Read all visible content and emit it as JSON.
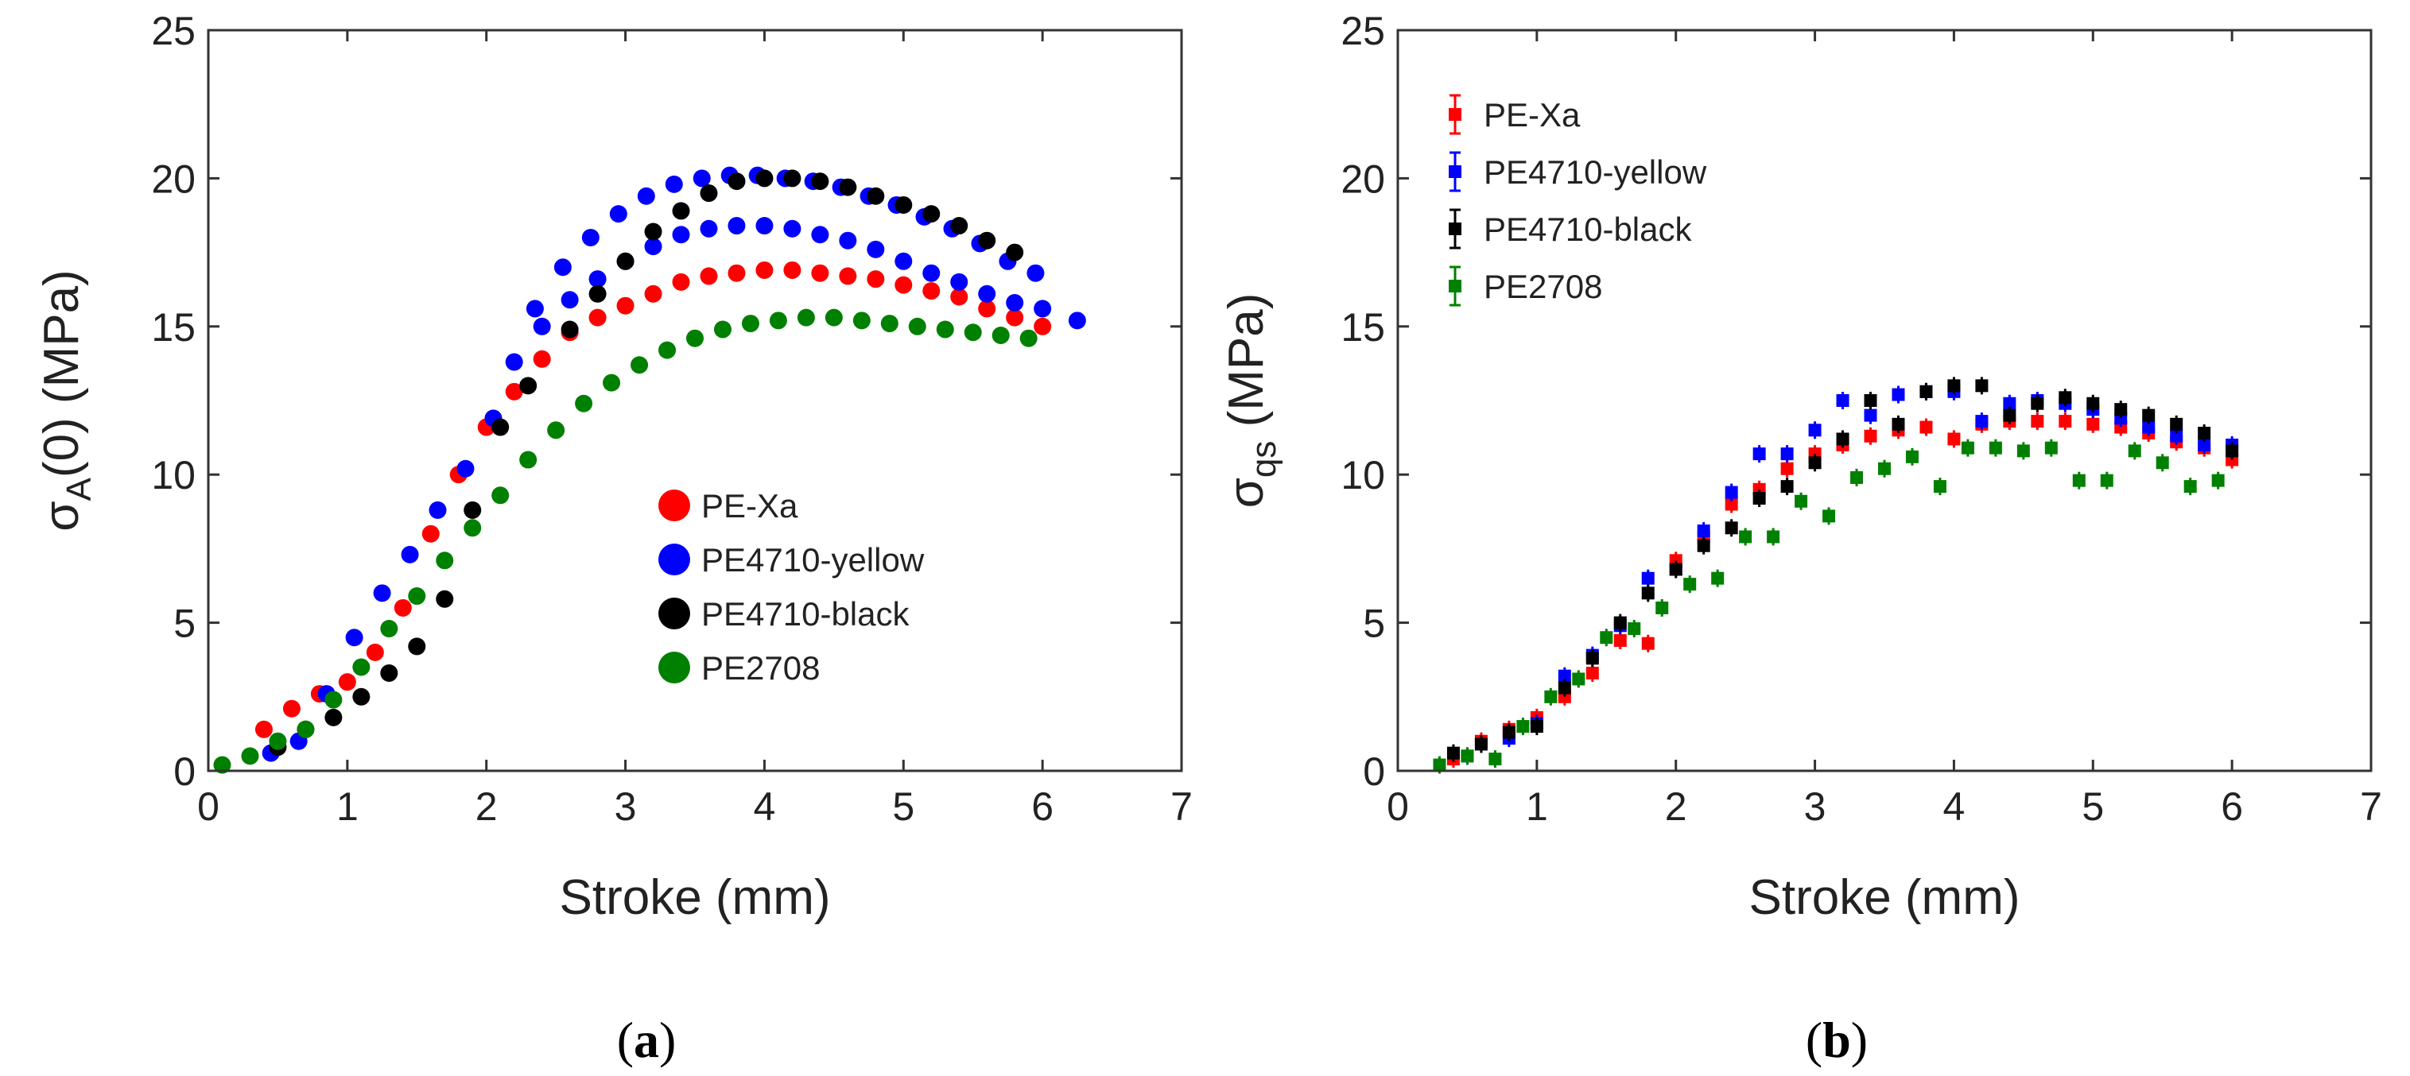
{
  "chart_data": [
    {
      "panel": "a",
      "type": "scatter",
      "title": "",
      "xlabel": "Stroke (mm)",
      "ylabel": {
        "base": "σ",
        "sub": "A",
        "rest": "(0) (MPa)"
      },
      "xlim": [
        0,
        7
      ],
      "ylim": [
        0,
        25
      ],
      "xticks": [
        0,
        1,
        2,
        3,
        4,
        5,
        6,
        7
      ],
      "yticks": [
        0,
        5,
        10,
        15,
        20,
        25
      ],
      "xtick_labels": [
        "0",
        "1",
        "2",
        "3",
        "4",
        "5",
        "6",
        "7"
      ],
      "ytick_labels": [
        "0",
        "5",
        "10",
        "15",
        "20",
        "25"
      ],
      "grid": false,
      "legend_position": "center-right",
      "series": [
        {
          "name": "PE-Xa",
          "color": "#ff0000",
          "marker": "large-dot",
          "x": [
            0.4,
            0.6,
            0.8,
            1.0,
            1.2,
            1.4,
            1.6,
            1.8,
            2.0,
            2.2,
            2.4,
            2.6,
            2.8,
            3.0,
            3.2,
            3.4,
            3.6,
            3.8,
            4.0,
            4.2,
            4.4,
            4.6,
            4.8,
            5.0,
            5.2,
            5.4,
            5.6,
            5.8,
            6.0
          ],
          "y": [
            1.4,
            2.1,
            2.6,
            3.0,
            4.0,
            5.5,
            8.0,
            10.0,
            11.6,
            12.8,
            13.9,
            14.8,
            15.3,
            15.7,
            16.1,
            16.5,
            16.7,
            16.8,
            16.9,
            16.9,
            16.8,
            16.7,
            16.6,
            16.4,
            16.2,
            16.0,
            15.6,
            15.3,
            15.0
          ]
        },
        {
          "name": "PE4710-yellow",
          "color": "#0000ff",
          "marker": "large-dot",
          "x": [
            0.45,
            0.65,
            0.85,
            1.05,
            1.25,
            1.45,
            1.65,
            1.85,
            2.05,
            2.2,
            2.35,
            2.55,
            2.75,
            2.95,
            3.15,
            3.35,
            3.55,
            3.75,
            3.95,
            4.15,
            4.35,
            4.55,
            4.75,
            4.95,
            5.15,
            5.35,
            5.55,
            5.75,
            5.95,
            6.25,
            2.4,
            2.6,
            2.8,
            3.0,
            3.2,
            3.4,
            3.6,
            3.8,
            4.0,
            4.2,
            4.4,
            4.6,
            4.8,
            5.0,
            5.2,
            5.4,
            5.6,
            5.8,
            6.0
          ],
          "y": [
            0.6,
            1.0,
            2.6,
            4.5,
            6.0,
            7.3,
            8.8,
            10.2,
            11.9,
            13.8,
            15.6,
            17.0,
            18.0,
            18.8,
            19.4,
            19.8,
            20.0,
            20.1,
            20.1,
            20.0,
            19.9,
            19.7,
            19.4,
            19.1,
            18.7,
            18.3,
            17.8,
            17.2,
            16.8,
            15.2,
            15.0,
            15.9,
            16.6,
            17.2,
            17.7,
            18.1,
            18.3,
            18.4,
            18.4,
            18.3,
            18.1,
            17.9,
            17.6,
            17.2,
            16.8,
            16.5,
            16.1,
            15.8,
            15.6
          ]
        },
        {
          "name": "PE4710-black",
          "color": "#000000",
          "marker": "large-dot",
          "x": [
            0.5,
            0.7,
            0.9,
            1.1,
            1.3,
            1.5,
            1.7,
            1.9,
            2.1,
            2.3,
            2.6,
            2.8,
            3.0,
            3.2,
            3.4,
            3.6,
            3.8,
            4.0,
            4.2,
            4.4,
            4.6,
            4.8,
            5.0,
            5.2,
            5.4,
            5.6,
            5.8
          ],
          "y": [
            0.8,
            1.4,
            1.8,
            2.5,
            3.3,
            4.2,
            5.8,
            8.8,
            11.6,
            13.0,
            14.9,
            16.1,
            17.2,
            18.2,
            18.9,
            19.5,
            19.9,
            20.0,
            20.0,
            19.9,
            19.7,
            19.4,
            19.1,
            18.8,
            18.4,
            17.9,
            17.5
          ]
        },
        {
          "name": "PE2708",
          "color": "#008000",
          "marker": "large-dot",
          "x": [
            0.1,
            0.3,
            0.5,
            0.7,
            0.9,
            1.1,
            1.3,
            1.5,
            1.7,
            1.9,
            2.1,
            2.3,
            2.5,
            2.7,
            2.9,
            3.1,
            3.3,
            3.5,
            3.7,
            3.9,
            4.1,
            4.3,
            4.5,
            4.7,
            4.9,
            5.1,
            5.3,
            5.5,
            5.7,
            5.9
          ],
          "y": [
            0.2,
            0.5,
            1.0,
            1.4,
            2.4,
            3.5,
            4.8,
            5.9,
            7.1,
            8.2,
            9.3,
            10.5,
            11.5,
            12.4,
            13.1,
            13.7,
            14.2,
            14.6,
            14.9,
            15.1,
            15.2,
            15.3,
            15.3,
            15.2,
            15.1,
            15.0,
            14.9,
            14.8,
            14.7,
            14.6
          ]
        }
      ]
    },
    {
      "panel": "b",
      "type": "scatter",
      "title": "",
      "xlabel": "Stroke (mm)",
      "ylabel": {
        "base": "σ",
        "sub": "qs",
        "rest": " (MPa)"
      },
      "xlim": [
        0,
        7
      ],
      "ylim": [
        0,
        25
      ],
      "xticks": [
        0,
        1,
        2,
        3,
        4,
        5,
        6,
        7
      ],
      "yticks": [
        0,
        5,
        10,
        15,
        20,
        25
      ],
      "xtick_labels": [
        "0",
        "1",
        "2",
        "3",
        "4",
        "5",
        "6",
        "7"
      ],
      "ytick_labels": [
        "0",
        "5",
        "10",
        "15",
        "20",
        "25"
      ],
      "grid": false,
      "legend_position": "top-left",
      "error_bars": true,
      "series": [
        {
          "name": "PE-Xa",
          "color": "#ff0000",
          "marker": "square",
          "x": [
            0.4,
            0.6,
            0.8,
            1.0,
            1.2,
            1.4,
            1.6,
            1.8,
            2.0,
            2.2,
            2.4,
            2.6,
            2.8,
            3.0,
            3.2,
            3.4,
            3.6,
            3.8,
            4.0,
            4.2,
            4.4,
            4.6,
            4.8,
            5.0,
            5.2,
            5.4,
            5.6,
            5.8,
            6.0
          ],
          "y": [
            0.4,
            1.0,
            1.4,
            1.8,
            2.5,
            3.3,
            4.4,
            4.3,
            7.1,
            7.9,
            9.0,
            9.5,
            10.2,
            10.7,
            11.0,
            11.3,
            11.5,
            11.6,
            11.2,
            11.7,
            11.8,
            11.8,
            11.8,
            11.7,
            11.6,
            11.4,
            11.1,
            10.9,
            10.5
          ]
        },
        {
          "name": "PE4710-yellow",
          "color": "#0000ff",
          "marker": "square",
          "x": [
            0.5,
            0.8,
            1.0,
            1.2,
            1.4,
            1.6,
            1.8,
            2.0,
            2.2,
            2.4,
            2.6,
            2.8,
            3.0,
            3.2,
            3.4,
            3.6,
            3.8,
            4.0,
            4.2,
            4.4,
            4.6,
            4.8,
            5.0,
            5.2,
            5.4,
            5.6,
            5.8,
            6.0
          ],
          "y": [
            0.5,
            1.1,
            1.6,
            3.2,
            3.9,
            4.9,
            6.5,
            6.8,
            8.1,
            9.4,
            10.7,
            10.7,
            11.5,
            12.5,
            12.0,
            12.7,
            12.8,
            12.8,
            11.8,
            12.4,
            12.5,
            12.4,
            12.2,
            11.9,
            11.6,
            11.3,
            11.0,
            11.0
          ]
        },
        {
          "name": "PE4710-black",
          "color": "#000000",
          "marker": "square",
          "x": [
            0.4,
            0.6,
            0.8,
            1.0,
            1.2,
            1.4,
            1.6,
            1.8,
            2.0,
            2.2,
            2.4,
            2.6,
            2.8,
            3.0,
            3.2,
            3.4,
            3.6,
            3.8,
            4.0,
            4.2,
            4.4,
            4.6,
            4.8,
            5.0,
            5.2,
            5.4,
            5.6,
            5.8,
            6.0
          ],
          "y": [
            0.6,
            0.9,
            1.3,
            1.5,
            2.8,
            3.8,
            5.0,
            6.0,
            6.8,
            7.6,
            8.2,
            9.2,
            9.6,
            10.4,
            11.2,
            12.5,
            11.7,
            12.8,
            13.0,
            13.0,
            12.0,
            12.4,
            12.6,
            12.4,
            12.2,
            12.0,
            11.7,
            11.4,
            10.8
          ]
        },
        {
          "name": "PE2708",
          "color": "#008000",
          "marker": "square",
          "x": [
            0.3,
            0.5,
            0.7,
            0.9,
            1.1,
            1.3,
            1.5,
            1.7,
            1.9,
            2.1,
            2.3,
            2.5,
            2.7,
            2.9,
            3.1,
            3.3,
            3.5,
            3.7,
            3.9,
            4.1,
            4.3,
            4.5,
            4.7,
            4.9,
            5.1,
            5.3,
            5.5,
            5.7,
            5.9
          ],
          "y": [
            0.2,
            0.5,
            0.4,
            1.5,
            2.5,
            3.1,
            4.5,
            4.8,
            5.5,
            6.3,
            6.5,
            7.9,
            7.9,
            9.1,
            8.6,
            9.9,
            10.2,
            10.6,
            9.6,
            10.9,
            10.9,
            10.8,
            10.9,
            9.8,
            9.8,
            10.8,
            10.4,
            9.6,
            9.8
          ]
        }
      ]
    }
  ],
  "panel_labels": {
    "a": {
      "open": "(",
      "letter": "a",
      "close": ")"
    },
    "b": {
      "open": "(",
      "letter": "b",
      "close": ")"
    }
  }
}
